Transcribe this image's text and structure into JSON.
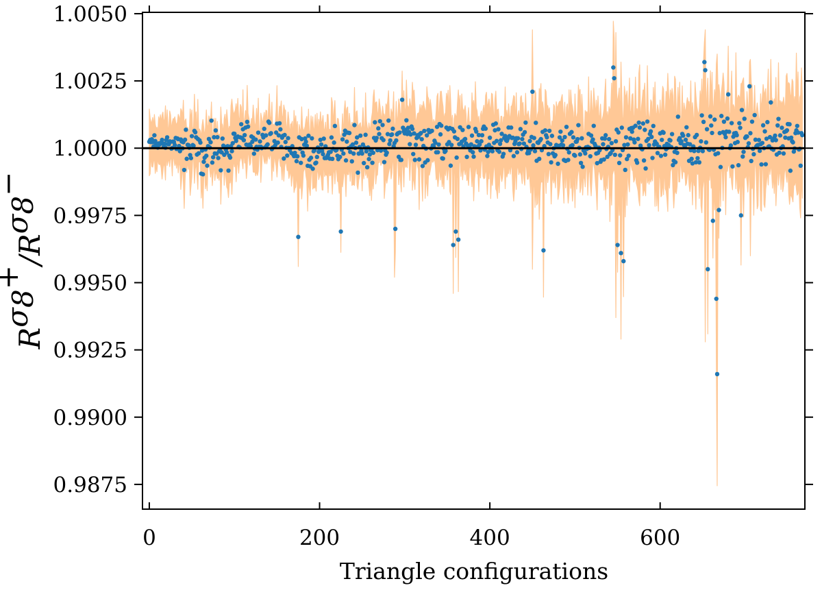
{
  "chart_data": {
    "type": "scatter",
    "xlabel": "Triangle configurations",
    "ylabel": {
      "base": "R",
      "sup1": "σ",
      "sub1": "8",
      "sup1_mark": "+",
      "slash": "/",
      "sup2": "σ",
      "sub2": "8",
      "sup2_mark": "−"
    },
    "xlim": [
      -8,
      770
    ],
    "ylim": [
      0.98658,
      1.00505
    ],
    "xticks": [
      0,
      200,
      400,
      600
    ],
    "xtick_labels": [
      "0",
      "200",
      "400",
      "600"
    ],
    "yticks": [
      0.9875,
      0.99,
      0.9925,
      0.995,
      0.9975,
      1.0,
      1.0025,
      1.005
    ],
    "ytick_labels": [
      "0.9875",
      "0.9900",
      "0.9925",
      "0.9950",
      "0.9975",
      "1.0000",
      "1.0025",
      "1.0050"
    ],
    "reference_line": 1.0,
    "n_points": 768,
    "series": [
      {
        "kind": "band",
        "color": "#ffc896"
      },
      {
        "kind": "points",
        "color": "#1f77b4"
      }
    ],
    "segments": [
      {
        "x": [
          0,
          35
        ],
        "center": 1.0002,
        "spread": 0.0004,
        "band": 0.0008
      },
      {
        "x": [
          36,
          95
        ],
        "center": 0.99995,
        "spread": 0.0008,
        "band": 0.0009
      },
      {
        "x": [
          96,
          160
        ],
        "center": 1.0003,
        "spread": 0.0006,
        "band": 0.0009
      },
      {
        "x": [
          161,
          200
        ],
        "center": 0.99985,
        "spread": 0.0007,
        "band": 0.001
      },
      {
        "x": [
          201,
          260
        ],
        "center": 1.0,
        "spread": 0.0007,
        "band": 0.001
      },
      {
        "x": [
          261,
          345
        ],
        "center": 1.0003,
        "spread": 0.0008,
        "band": 0.0011
      },
      {
        "x": [
          346,
          440
        ],
        "center": 1.0002,
        "spread": 0.0007,
        "band": 0.0011
      },
      {
        "x": [
          441,
          540
        ],
        "center": 1.0001,
        "spread": 0.0008,
        "band": 0.0013
      },
      {
        "x": [
          541,
          645
        ],
        "center": 1.0002,
        "spread": 0.0008,
        "band": 0.0014
      },
      {
        "x": [
          646,
          767
        ],
        "center": 1.0003,
        "spread": 0.0009,
        "band": 0.0016
      }
    ],
    "highlighted_points": [
      {
        "x": 175,
        "y": 0.9967
      },
      {
        "x": 225,
        "y": 0.9969
      },
      {
        "x": 289,
        "y": 0.997
      },
      {
        "x": 297,
        "y": 1.0018
      },
      {
        "x": 357,
        "y": 0.9964
      },
      {
        "x": 360,
        "y": 0.9969
      },
      {
        "x": 363,
        "y": 0.9966
      },
      {
        "x": 450,
        "y": 1.0021
      },
      {
        "x": 463,
        "y": 0.9962
      },
      {
        "x": 545,
        "y": 1.003
      },
      {
        "x": 546,
        "y": 1.0026
      },
      {
        "x": 550,
        "y": 0.9964
      },
      {
        "x": 554,
        "y": 0.9961
      },
      {
        "x": 557,
        "y": 0.9958
      },
      {
        "x": 652,
        "y": 1.0032
      },
      {
        "x": 653,
        "y": 1.0029
      },
      {
        "x": 656,
        "y": 0.9955
      },
      {
        "x": 662,
        "y": 0.9973
      },
      {
        "x": 666,
        "y": 0.9944
      },
      {
        "x": 667,
        "y": 0.9916
      },
      {
        "x": 669,
        "y": 0.9977
      },
      {
        "x": 680,
        "y": 1.002
      },
      {
        "x": 695,
        "y": 0.9975
      },
      {
        "x": 705,
        "y": 1.0023
      },
      {
        "x": 730,
        "y": 1.0017
      }
    ],
    "band_spikes": [
      {
        "x": 175,
        "low": 0.9956,
        "high": 1.0
      },
      {
        "x": 288,
        "low": 0.9952,
        "high": 1.0005
      },
      {
        "x": 357,
        "low": 0.9946,
        "high": 1.0002
      },
      {
        "x": 450,
        "low": 0.9955,
        "high": 1.0044
      },
      {
        "x": 548,
        "low": 0.9937,
        "high": 1.0043
      },
      {
        "x": 554,
        "low": 0.9929,
        "high": 1.0032
      },
      {
        "x": 653,
        "low": 0.9928,
        "high": 1.0044
      },
      {
        "x": 667,
        "low": 0.98745,
        "high": 1.0035
      },
      {
        "x": 706,
        "low": 0.996,
        "high": 1.0033
      }
    ]
  }
}
